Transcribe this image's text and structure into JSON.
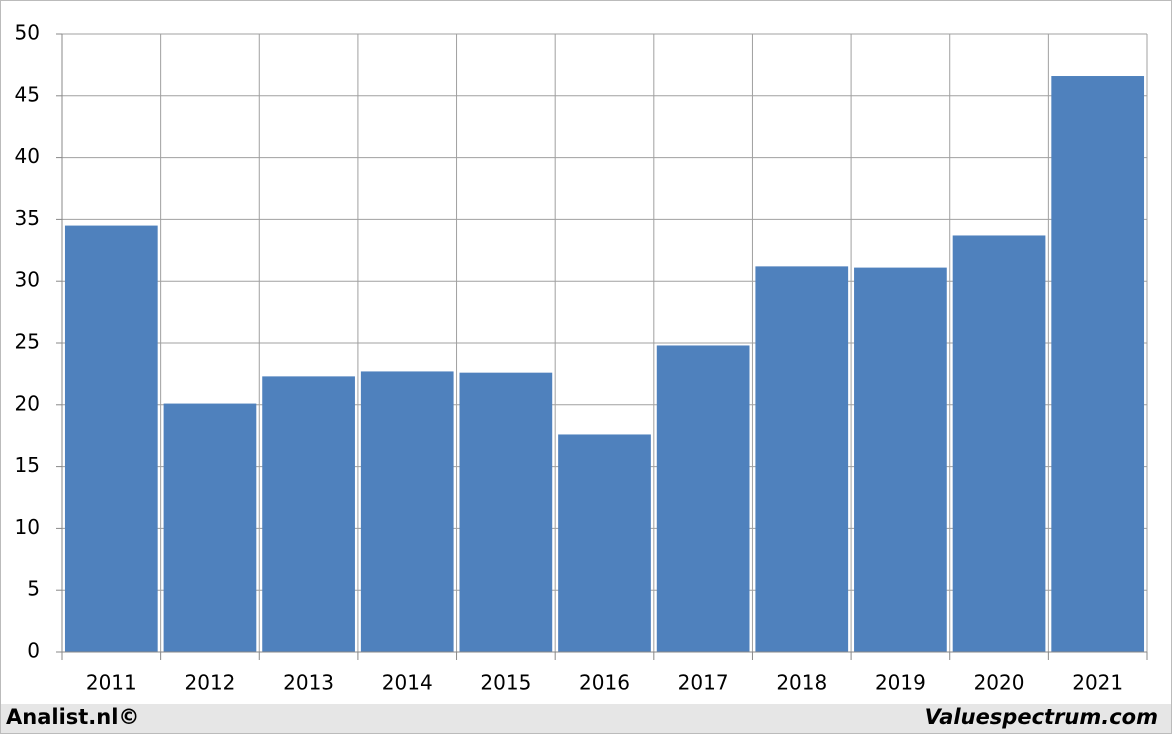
{
  "chart_data": {
    "type": "bar",
    "categories": [
      "2011",
      "2012",
      "2013",
      "2014",
      "2015",
      "2016",
      "2017",
      "2018",
      "2019",
      "2020",
      "2021"
    ],
    "values": [
      34.5,
      20.1,
      22.3,
      22.7,
      22.6,
      17.6,
      24.8,
      31.2,
      31.1,
      33.7,
      46.6
    ],
    "color": "#4f81bd",
    "ylim": [
      0,
      50
    ],
    "yticks": [
      0,
      5,
      10,
      15,
      20,
      25,
      30,
      35,
      40,
      45,
      50
    ],
    "grid": true,
    "annotations": [
      "Analist.nl©",
      "Valuespectrum.com"
    ]
  }
}
